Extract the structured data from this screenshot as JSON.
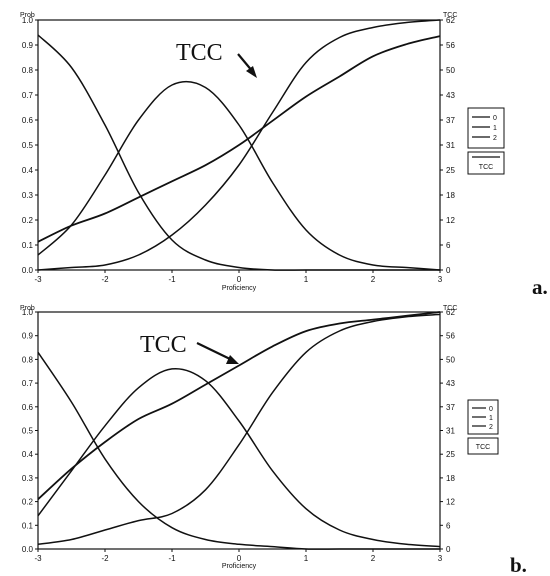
{
  "chart_data": [
    {
      "panel": "a.",
      "type": "line",
      "callout": "TCC",
      "xlabel": "Proficiency",
      "ylabel": "Prob",
      "y2label": "TCC",
      "xlim": [
        -3,
        3
      ],
      "ylim": [
        0,
        1.0
      ],
      "y2lim": [
        0,
        62
      ],
      "xticks": [
        "-3",
        "-2",
        "-1",
        "0",
        "1",
        "2",
        "3"
      ],
      "yticks": [
        "0.0",
        "0.1",
        "0.2",
        "0.3",
        "0.4",
        "0.5",
        "0.6",
        "0.7",
        "0.8",
        "0.9",
        "1.0"
      ],
      "y2ticks": [
        "0",
        "6",
        "12",
        "18",
        "25",
        "31",
        "37",
        "43",
        "50",
        "56",
        "62"
      ],
      "x": [
        -3.0,
        -2.5,
        -2.0,
        -1.5,
        -1.0,
        -0.5,
        0.0,
        0.5,
        1.0,
        1.5,
        2.0,
        2.5,
        3.0
      ],
      "series": [
        {
          "name": "0",
          "axis": "left",
          "values": [
            0.94,
            0.81,
            0.58,
            0.31,
            0.12,
            0.04,
            0.01,
            0.0,
            0.0,
            0.0,
            0.0,
            0.0,
            0.0
          ]
        },
        {
          "name": "1",
          "axis": "left",
          "values": [
            0.06,
            0.18,
            0.38,
            0.6,
            0.74,
            0.73,
            0.58,
            0.35,
            0.16,
            0.06,
            0.02,
            0.01,
            0.0
          ]
        },
        {
          "name": "2",
          "axis": "left",
          "values": [
            0.0,
            0.01,
            0.02,
            0.06,
            0.14,
            0.26,
            0.42,
            0.63,
            0.83,
            0.93,
            0.97,
            0.99,
            1.0
          ]
        },
        {
          "name": "TCC",
          "axis": "right",
          "values": [
            7,
            11,
            14,
            18,
            22,
            26,
            31,
            37,
            43,
            48,
            53,
            56,
            58
          ]
        }
      ],
      "legend": [
        "0",
        "1",
        "2",
        "TCC"
      ],
      "legend_position": "right"
    },
    {
      "panel": "b.",
      "type": "line",
      "callout": "TCC",
      "xlabel": "Proficiency",
      "ylabel": "Prob",
      "y2label": "TCC",
      "xlim": [
        -3,
        3
      ],
      "ylim": [
        0,
        1.0
      ],
      "y2lim": [
        0,
        62
      ],
      "xticks": [
        "-3",
        "-2",
        "-1",
        "0",
        "1",
        "2",
        "3"
      ],
      "yticks": [
        "0.0",
        "0.1",
        "0.2",
        "0.3",
        "0.4",
        "0.5",
        "0.6",
        "0.7",
        "0.8",
        "0.9",
        "1.0"
      ],
      "y2ticks": [
        "0",
        "6",
        "12",
        "18",
        "25",
        "31",
        "37",
        "43",
        "50",
        "56",
        "62"
      ],
      "x": [
        -3.0,
        -2.5,
        -2.0,
        -1.5,
        -1.0,
        -0.5,
        0.0,
        0.5,
        1.0,
        1.5,
        2.0,
        2.5,
        3.0
      ],
      "series": [
        {
          "name": "0",
          "axis": "left",
          "values": [
            0.83,
            0.62,
            0.38,
            0.2,
            0.09,
            0.04,
            0.02,
            0.01,
            0.0,
            0.0,
            0.0,
            0.0,
            0.0
          ]
        },
        {
          "name": "1",
          "axis": "left",
          "values": [
            0.14,
            0.33,
            0.52,
            0.68,
            0.76,
            0.71,
            0.54,
            0.33,
            0.17,
            0.08,
            0.04,
            0.02,
            0.01
          ]
        },
        {
          "name": "2",
          "axis": "left",
          "values": [
            0.02,
            0.04,
            0.08,
            0.12,
            0.15,
            0.25,
            0.44,
            0.66,
            0.83,
            0.92,
            0.96,
            0.98,
            0.99
          ]
        },
        {
          "name": "TCC",
          "axis": "right",
          "values": [
            13,
            21,
            28,
            34,
            38,
            43,
            48,
            53,
            57,
            59,
            60,
            61,
            62
          ]
        }
      ],
      "legend": [
        "0",
        "1",
        "2",
        "TCC"
      ],
      "legend_position": "right"
    }
  ]
}
